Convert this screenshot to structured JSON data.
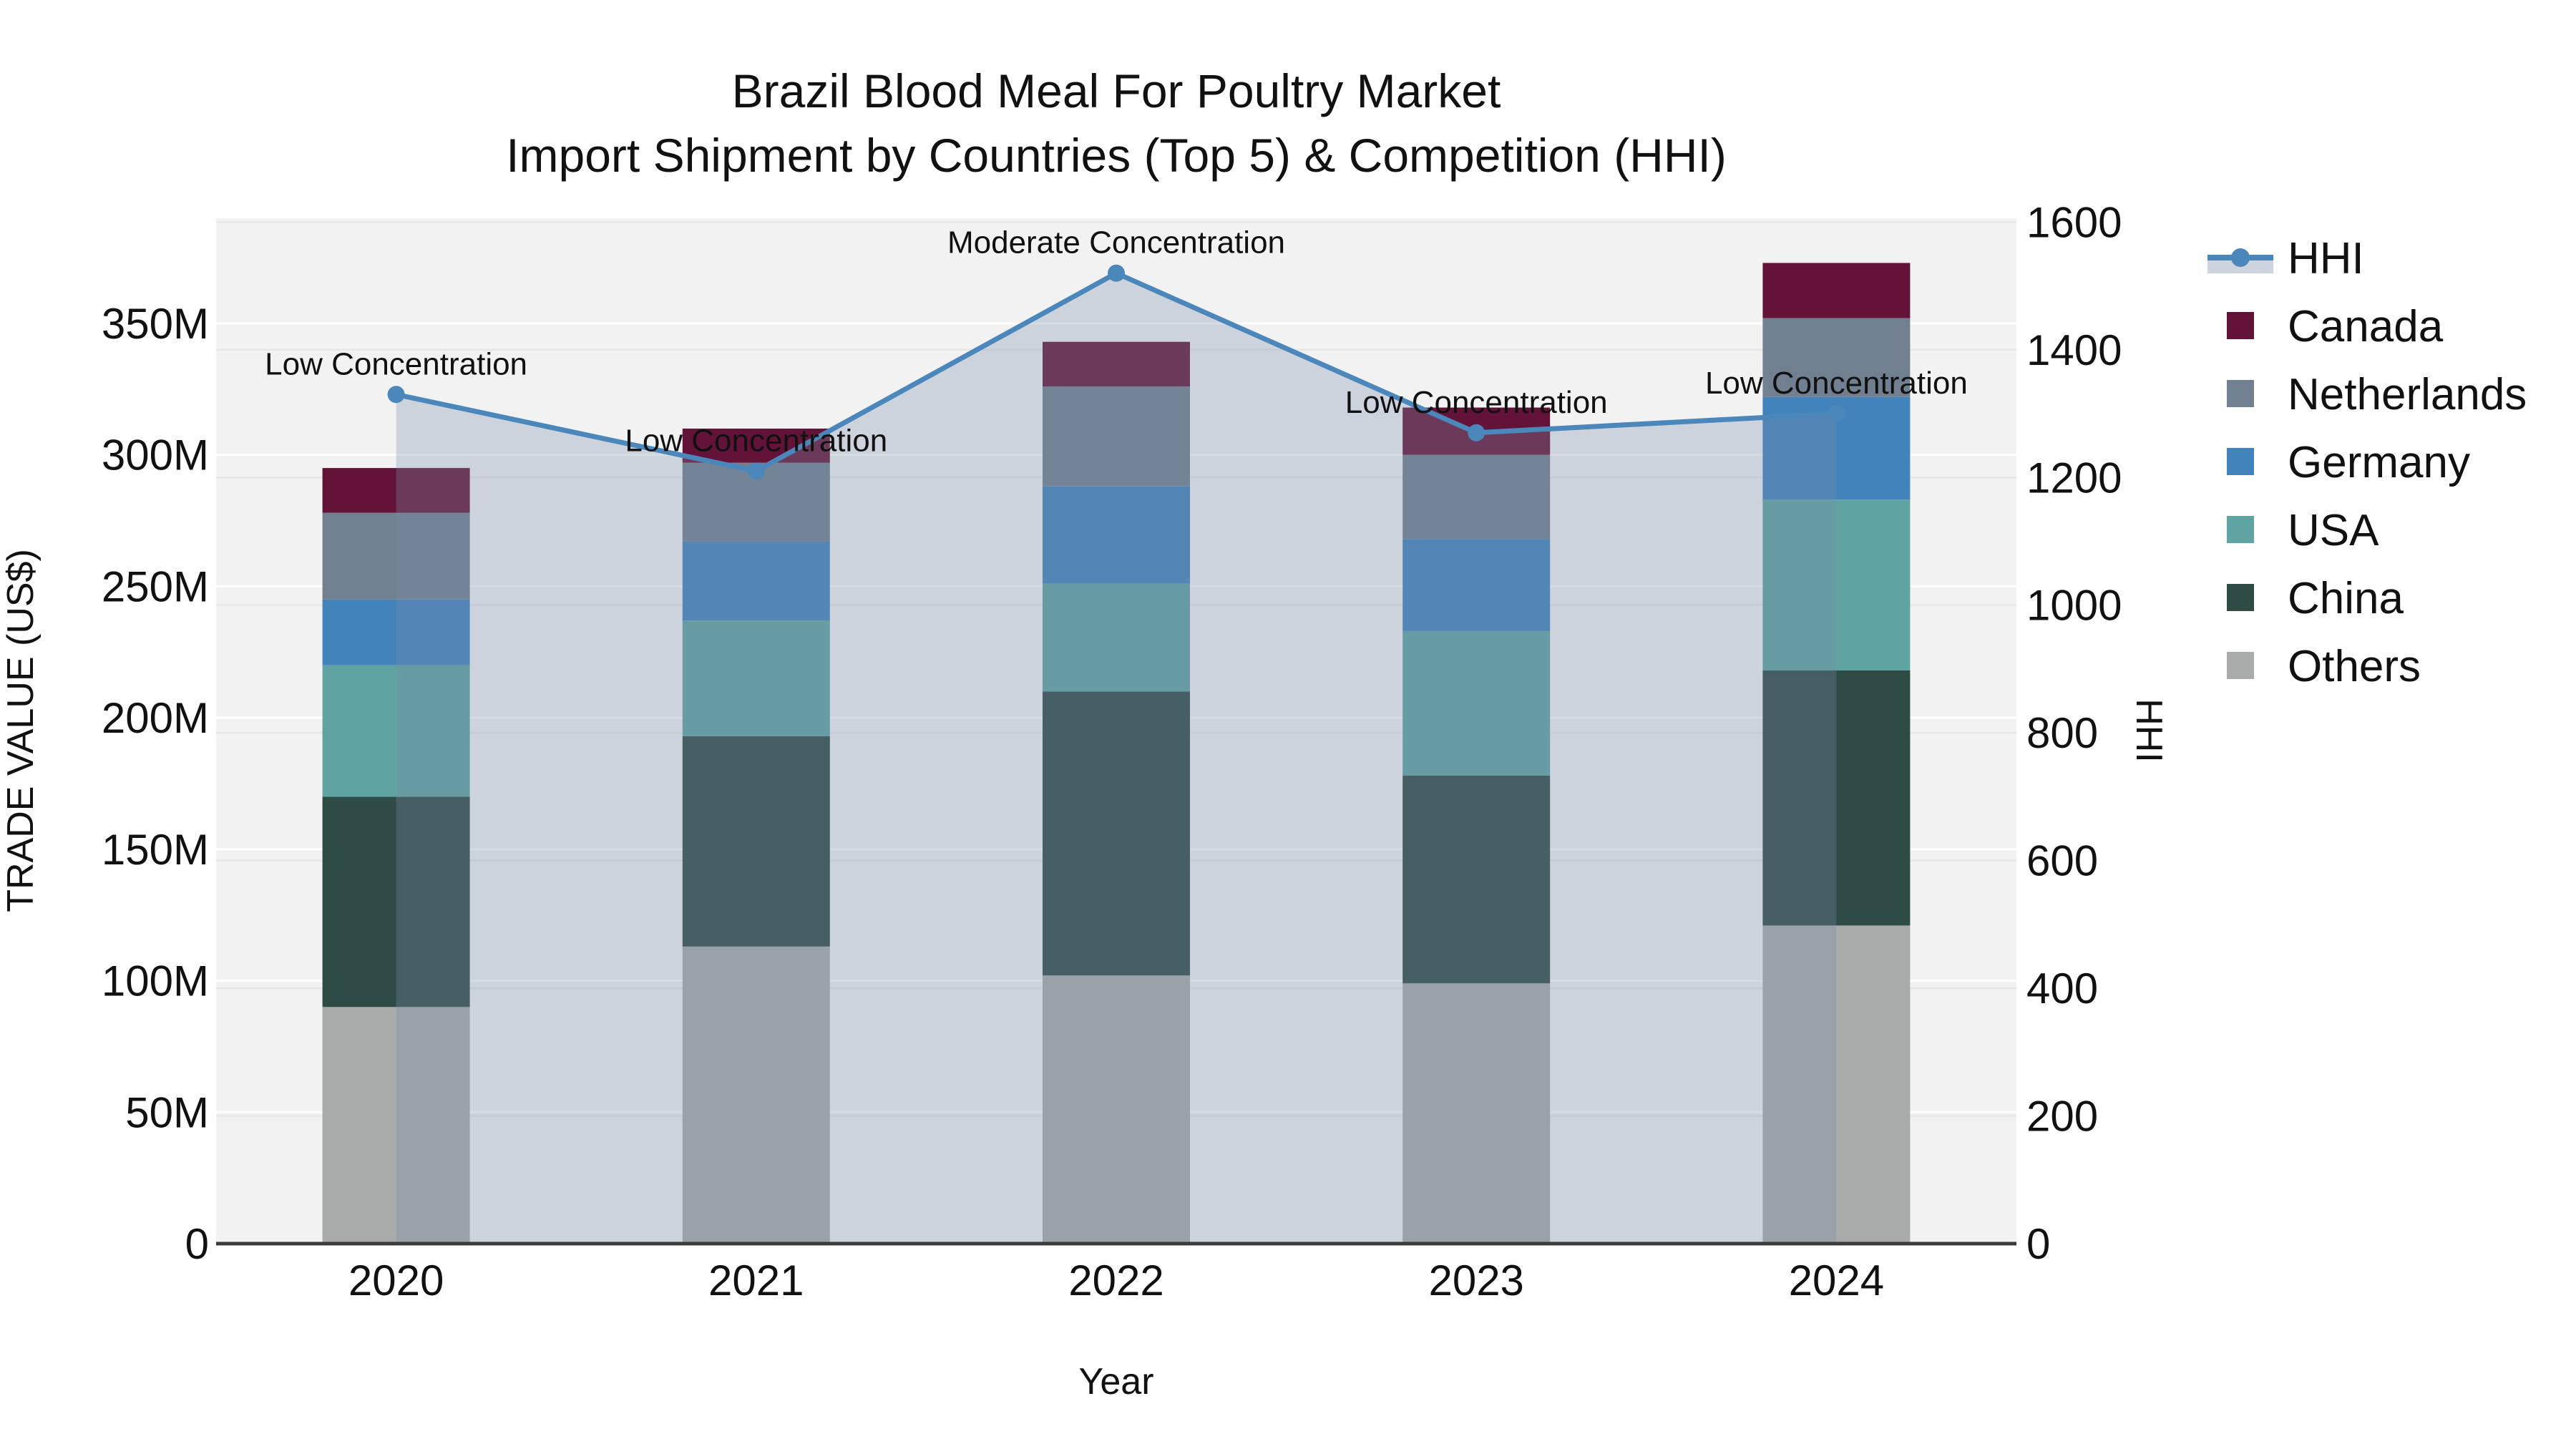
{
  "title": {
    "line1": "Brazil Blood Meal For Poultry Market",
    "line2": "Import Shipment by Countries (Top 5) & Competition (HHI)"
  },
  "axes": {
    "left": {
      "title": "TRADE VALUE (US$)",
      "ticks": [
        {
          "label": "0",
          "value": 0
        },
        {
          "label": "50M",
          "value": 50
        },
        {
          "label": "100M",
          "value": 100
        },
        {
          "label": "150M",
          "value": 150
        },
        {
          "label": "200M",
          "value": 200
        },
        {
          "label": "250M",
          "value": 250
        },
        {
          "label": "300M",
          "value": 300
        },
        {
          "label": "350M",
          "value": 350
        }
      ],
      "range": [
        0,
        390
      ]
    },
    "right": {
      "title": "HHI",
      "ticks": [
        {
          "label": "0",
          "value": 0
        },
        {
          "label": "200",
          "value": 200
        },
        {
          "label": "400",
          "value": 400
        },
        {
          "label": "600",
          "value": 600
        },
        {
          "label": "800",
          "value": 800
        },
        {
          "label": "1000",
          "value": 1000
        },
        {
          "label": "1200",
          "value": 1200
        },
        {
          "label": "1400",
          "value": 1400
        },
        {
          "label": "1600",
          "value": 1600
        }
      ],
      "range": [
        0,
        1606
      ]
    },
    "x": {
      "title": "Year"
    }
  },
  "legend": {
    "items": [
      {
        "label": "HHI",
        "kind": "line",
        "series": "hhi"
      },
      {
        "label": "Canada",
        "kind": "swatch",
        "series": "canada"
      },
      {
        "label": "Netherlands",
        "kind": "swatch",
        "series": "netherlands"
      },
      {
        "label": "Germany",
        "kind": "swatch",
        "series": "germany"
      },
      {
        "label": "USA",
        "kind": "swatch",
        "series": "usa"
      },
      {
        "label": "China",
        "kind": "swatch",
        "series": "china"
      },
      {
        "label": "Others",
        "kind": "swatch",
        "series": "others"
      }
    ]
  },
  "colors": {
    "canada": "#641338",
    "netherlands": "#708090",
    "germany": "#4383bc",
    "usa": "#5fa3a2",
    "china": "#2f4b46",
    "others": "#a9abaa",
    "hhi_line": "#4b87ba",
    "hhi_area": "#7b8ea9",
    "hhi_area_opacity": 0.31,
    "legend_band": "#cdd4dd",
    "plot_bg": "#f2f2f3",
    "grid_left": "#ffffff",
    "grid_right": "#e7e7ea",
    "axis_line": "#3a3a3a",
    "text": "#111111"
  },
  "chart_data": {
    "type": "bar+line",
    "categories": [
      "2020",
      "2021",
      "2022",
      "2023",
      "2024"
    ],
    "bar_unit": "M US$",
    "stack_order": "bottom-to-top",
    "series": [
      {
        "name": "Others",
        "key": "others",
        "values": [
          90,
          113,
          102,
          99,
          121
        ]
      },
      {
        "name": "China",
        "key": "china",
        "values": [
          80,
          80,
          108,
          79,
          97
        ]
      },
      {
        "name": "USA",
        "key": "usa",
        "values": [
          50,
          44,
          41,
          55,
          65
        ]
      },
      {
        "name": "Germany",
        "key": "germany",
        "values": [
          25,
          30,
          37,
          35,
          39
        ]
      },
      {
        "name": "Netherlands",
        "key": "netherlands",
        "values": [
          33,
          30,
          38,
          32,
          30
        ]
      },
      {
        "name": "Canada",
        "key": "canada",
        "values": [
          17,
          13,
          17,
          18,
          21
        ]
      }
    ],
    "line_series": {
      "name": "HHI",
      "key": "hhi",
      "axis": "right",
      "values": [
        1330,
        1210,
        1520,
        1270,
        1300
      ]
    },
    "annotations": [
      {
        "category": "2020",
        "text": "Low Concentration"
      },
      {
        "category": "2021",
        "text": "Low Concentration"
      },
      {
        "category": "2022",
        "text": "Moderate Concentration"
      },
      {
        "category": "2023",
        "text": "Low Concentration"
      },
      {
        "category": "2024",
        "text": "Low Concentration"
      }
    ],
    "xlabel": "Year",
    "ylabel_left": "TRADE VALUE (US$)",
    "ylabel_right": "HHI",
    "grid": true,
    "legend_position": "right"
  }
}
